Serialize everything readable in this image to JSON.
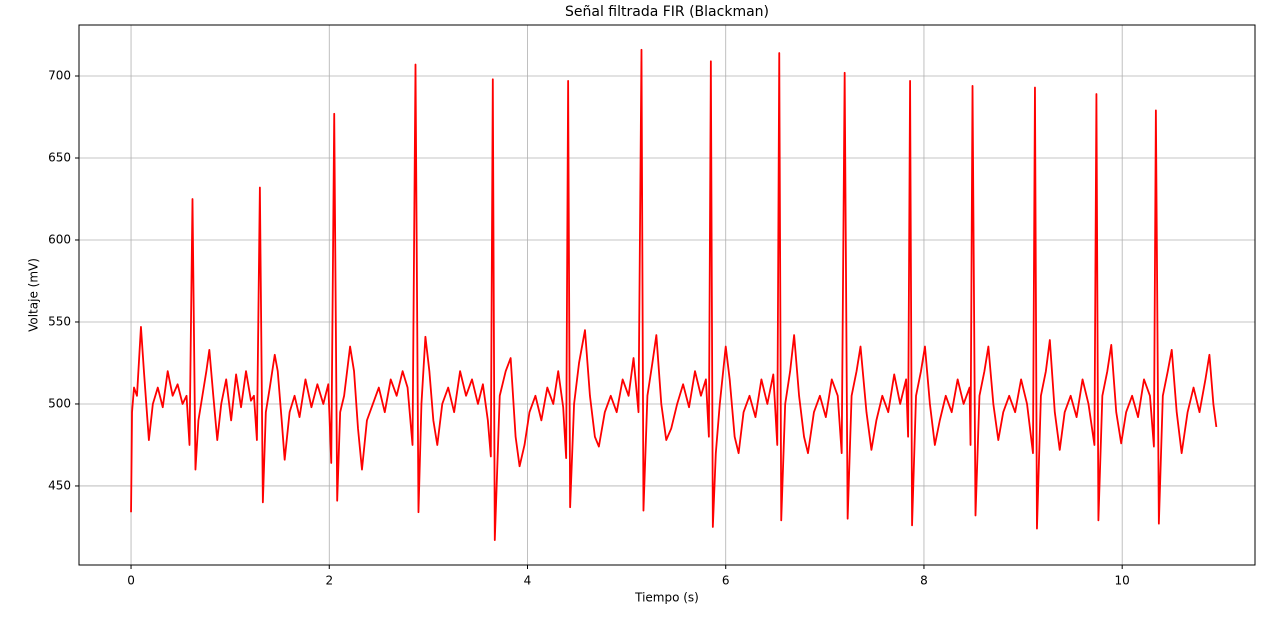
{
  "chart_data": {
    "type": "line",
    "title": "Señal filtrada FIR (Blackman)",
    "x_label": "Tiempo (s)",
    "y_label": "Voltaje (mV)",
    "grid": true,
    "xlim": [
      -0.525,
      11.34
    ],
    "ylim": [
      401.8,
      731.1
    ],
    "xticks": [
      0,
      2,
      4,
      6,
      8,
      10
    ],
    "yticks": [
      450,
      500,
      550,
      600,
      650,
      700
    ],
    "x": [
      0,
      0.01,
      0.03,
      0.06,
      0.1,
      0.13,
      0.18,
      0.22,
      0.27,
      0.32,
      0.37,
      0.42,
      0.47,
      0.52,
      0.56,
      0.59,
      0.62,
      0.65,
      0.68,
      0.72,
      0.76,
      0.79,
      0.83,
      0.87,
      0.91,
      0.96,
      1.01,
      1.06,
      1.11,
      1.16,
      1.21,
      1.24,
      1.27,
      1.3,
      1.33,
      1.36,
      1.4,
      1.45,
      1.48,
      1.52,
      1.55,
      1.6,
      1.65,
      1.7,
      1.76,
      1.82,
      1.88,
      1.94,
      1.99,
      2.02,
      2.05,
      2.08,
      2.11,
      2.15,
      2.21,
      2.25,
      2.29,
      2.33,
      2.38,
      2.44,
      2.5,
      2.56,
      2.62,
      2.68,
      2.74,
      2.79,
      2.84,
      2.87,
      2.9,
      2.93,
      2.97,
      3.01,
      3.05,
      3.09,
      3.14,
      3.2,
      3.26,
      3.32,
      3.38,
      3.44,
      3.5,
      3.55,
      3.6,
      3.63,
      3.65,
      3.67,
      3.72,
      3.78,
      3.83,
      3.88,
      3.92,
      3.97,
      4.02,
      4.08,
      4.14,
      4.2,
      4.26,
      4.31,
      4.36,
      4.39,
      4.41,
      4.43,
      4.47,
      4.52,
      4.58,
      4.63,
      4.68,
      4.72,
      4.78,
      4.84,
      4.9,
      4.96,
      5.02,
      5.07,
      5.12,
      5.15,
      5.17,
      5.21,
      5.26,
      5.3,
      5.35,
      5.4,
      5.45,
      5.51,
      5.57,
      5.63,
      5.69,
      5.75,
      5.8,
      5.83,
      5.85,
      5.87,
      5.9,
      5.94,
      6,
      6.04,
      6.09,
      6.13,
      6.18,
      6.24,
      6.3,
      6.36,
      6.42,
      6.48,
      6.52,
      6.54,
      6.56,
      6.6,
      6.65,
      6.69,
      6.74,
      6.79,
      6.83,
      6.89,
      6.95,
      7.01,
      7.07,
      7.13,
      7.17,
      7.2,
      7.23,
      7.27,
      7.32,
      7.36,
      7.42,
      7.47,
      7.52,
      7.58,
      7.64,
      7.7,
      7.76,
      7.82,
      7.84,
      7.86,
      7.88,
      7.92,
      7.97,
      8.01,
      8.06,
      8.11,
      8.16,
      8.22,
      8.28,
      8.34,
      8.4,
      8.46,
      8.47,
      8.49,
      8.52,
      8.56,
      8.61,
      8.65,
      8.7,
      8.75,
      8.8,
      8.86,
      8.92,
      8.98,
      9.04,
      9.1,
      9.12,
      9.14,
      9.18,
      9.23,
      9.27,
      9.32,
      9.37,
      9.42,
      9.48,
      9.54,
      9.6,
      9.66,
      9.72,
      9.74,
      9.76,
      9.8,
      9.85,
      9.89,
      9.94,
      9.99,
      10.04,
      10.1,
      10.16,
      10.22,
      10.28,
      10.32,
      10.34,
      10.37,
      10.41,
      10.46,
      10.5,
      10.55,
      10.6,
      10.66,
      10.72,
      10.78,
      10.84,
      10.88,
      10.92,
      10.95
    ],
    "series": [
      {
        "name": "Señal filtrada",
        "color": "#ff0000",
        "values": [
          434,
          495,
          510,
          505,
          547,
          520,
          478,
          500,
          510,
          498,
          520,
          505,
          512,
          500,
          505,
          475,
          625,
          460,
          490,
          505,
          520,
          533,
          505,
          478,
          500,
          515,
          490,
          518,
          498,
          520,
          502,
          505,
          478,
          632,
          440,
          495,
          510,
          530,
          520,
          490,
          466,
          495,
          505,
          492,
          515,
          498,
          512,
          500,
          512,
          464,
          677,
          441,
          495,
          505,
          535,
          520,
          485,
          460,
          490,
          500,
          510,
          495,
          515,
          505,
          520,
          510,
          475,
          707,
          434,
          500,
          541,
          520,
          490,
          475,
          500,
          510,
          495,
          520,
          505,
          515,
          500,
          512,
          490,
          468,
          698,
          417,
          505,
          520,
          528,
          480,
          462,
          475,
          495,
          505,
          490,
          510,
          500,
          520,
          498,
          467,
          697,
          437,
          500,
          525,
          545,
          505,
          480,
          474,
          495,
          505,
          495,
          515,
          505,
          528,
          495,
          716,
          435,
          505,
          525,
          542,
          500,
          478,
          485,
          500,
          512,
          498,
          520,
          505,
          515,
          480,
          709,
          425,
          470,
          500,
          535,
          515,
          480,
          470,
          495,
          505,
          492,
          515,
          500,
          518,
          475,
          714,
          429,
          500,
          520,
          542,
          505,
          480,
          470,
          495,
          505,
          492,
          515,
          505,
          470,
          702,
          430,
          505,
          520,
          535,
          495,
          472,
          490,
          505,
          495,
          518,
          500,
          515,
          480,
          697,
          426,
          505,
          520,
          535,
          500,
          475,
          490,
          505,
          495,
          515,
          500,
          510,
          475,
          694,
          432,
          505,
          520,
          535,
          500,
          478,
          495,
          505,
          495,
          515,
          500,
          470,
          693,
          424,
          505,
          520,
          539,
          495,
          472,
          495,
          505,
          492,
          515,
          500,
          475,
          689,
          429,
          505,
          520,
          536,
          495,
          476,
          495,
          505,
          492,
          515,
          505,
          474,
          679,
          427,
          505,
          520,
          533,
          495,
          470,
          495,
          510,
          495,
          515,
          530,
          500,
          486
        ]
      }
    ]
  }
}
